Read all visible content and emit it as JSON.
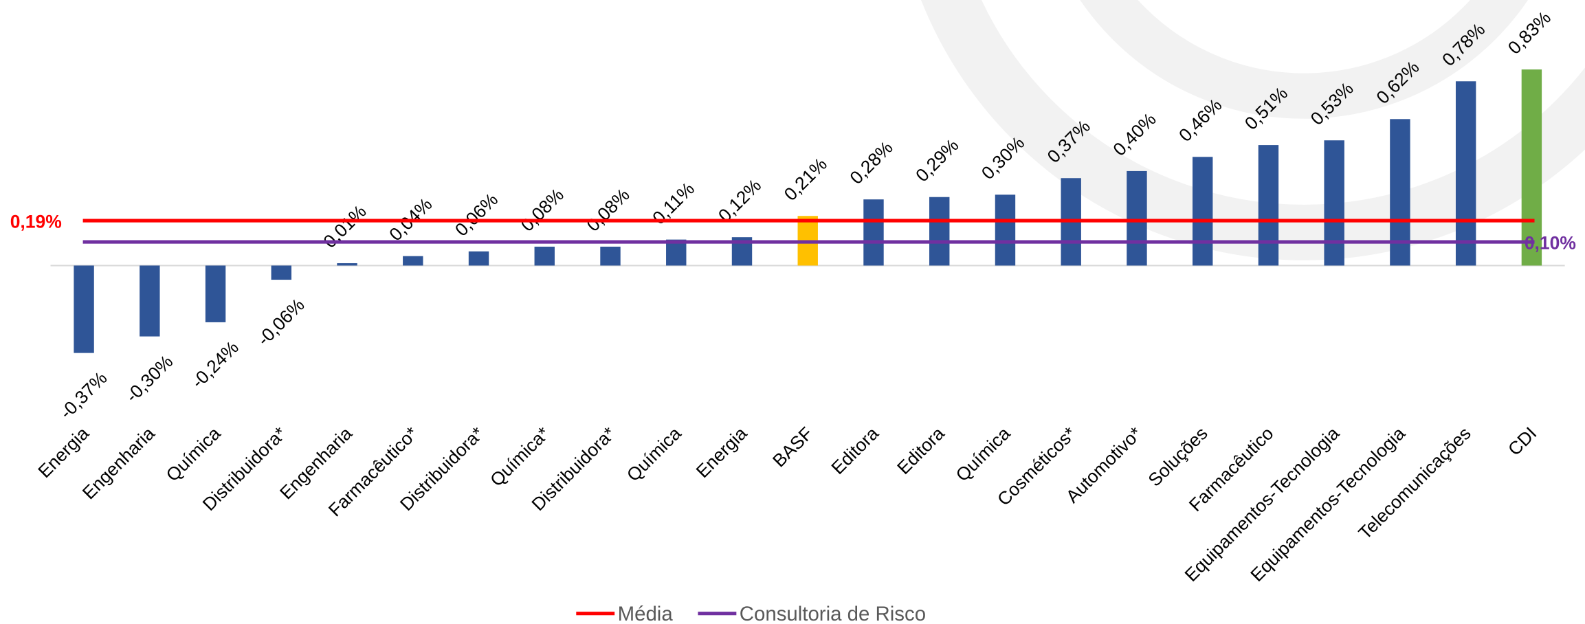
{
  "chart_data": {
    "type": "bar",
    "categories": [
      "Energia",
      "Engenharia",
      "Química",
      "Distribuidora*",
      "Engenharia",
      "Farmacêutico*",
      "Distribuidora*",
      "Química*",
      "Distribuidora*",
      "Química",
      "Energia",
      "BASF",
      "Editora",
      "Editora",
      "Química",
      "Cosméticos*",
      "Automotivo*",
      "Soluções",
      "Farmacêutico",
      "Equipamentos-Tecnologia",
      "Equipamentos-Tecnologia",
      "Telecomunicações",
      "CDI"
    ],
    "values": [
      -0.37,
      -0.3,
      -0.24,
      -0.06,
      0.01,
      0.04,
      0.06,
      0.08,
      0.08,
      0.11,
      0.12,
      0.21,
      0.28,
      0.29,
      0.3,
      0.37,
      0.4,
      0.46,
      0.51,
      0.53,
      0.62,
      0.78,
      0.83
    ],
    "value_labels": [
      "-0,37%",
      "-0,30%",
      "-0,24%",
      "-0,06%",
      "0,01%",
      "0,04%",
      "0,06%",
      "0,08%",
      "0,08%",
      "0,11%",
      "0,12%",
      "0,21%",
      "0,28%",
      "0,29%",
      "0,30%",
      "0,37%",
      "0,40%",
      "0,46%",
      "0,51%",
      "0,53%",
      "0,62%",
      "0,78%",
      "0,83%"
    ],
    "colors": [
      "#2f5597",
      "#2f5597",
      "#2f5597",
      "#2f5597",
      "#2f5597",
      "#2f5597",
      "#2f5597",
      "#2f5597",
      "#2f5597",
      "#2f5597",
      "#2f5597",
      "#ffc000",
      "#2f5597",
      "#2f5597",
      "#2f5597",
      "#2f5597",
      "#2f5597",
      "#2f5597",
      "#2f5597",
      "#2f5597",
      "#2f5597",
      "#2f5597",
      "#70ad47"
    ],
    "ylim": [
      -0.6,
      1.0
    ],
    "reference_lines": [
      {
        "name": "Média",
        "value": 0.19,
        "value_label": "0,19%",
        "color": "#ff0000"
      },
      {
        "name": "Consultoria de Risco",
        "value": 0.1,
        "value_label": "0,10%",
        "color": "#7030a0"
      }
    ],
    "legend": "bottom"
  }
}
